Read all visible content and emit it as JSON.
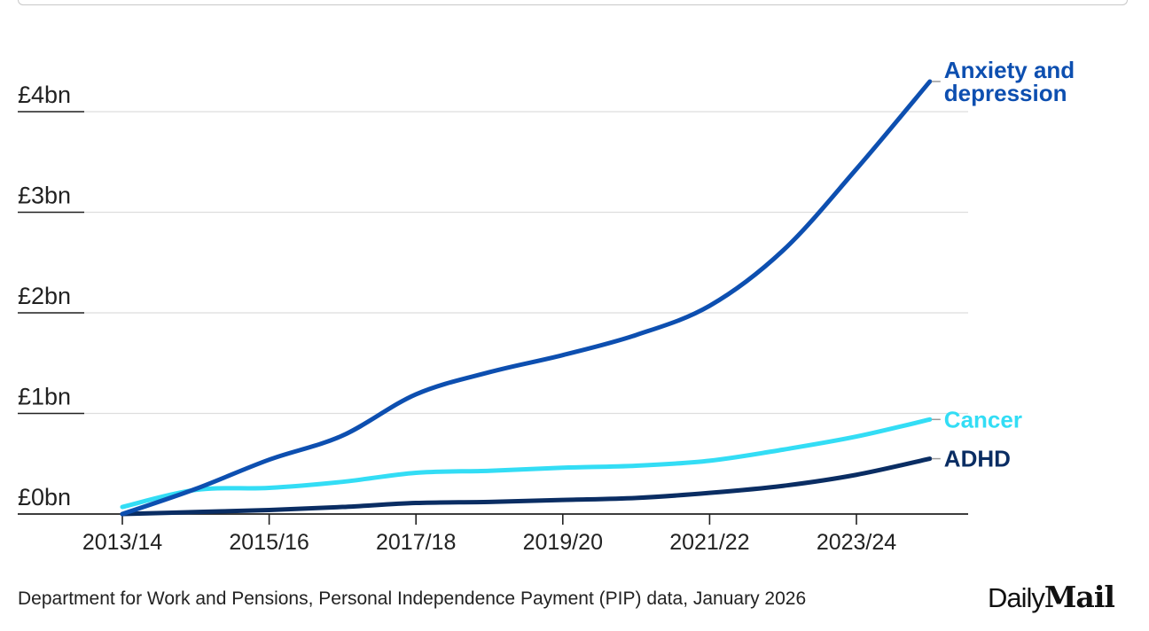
{
  "chart_data": {
    "type": "line",
    "title": "",
    "xlabel": "",
    "ylabel": "",
    "x": [
      "2013/14",
      "2014/15",
      "2015/16",
      "2016/17",
      "2017/18",
      "2018/19",
      "2019/20",
      "2020/21",
      "2021/22",
      "2022/23",
      "2023/24",
      "2024/25"
    ],
    "x_tick_labels": [
      "2013/14",
      "2015/16",
      "2017/18",
      "2019/20",
      "2021/22",
      "2023/24"
    ],
    "y_tick_values": [
      0,
      1,
      2,
      3,
      4
    ],
    "y_tick_labels": [
      "£0bn",
      "£1bn",
      "£2bn",
      "£3bn",
      "£4bn"
    ],
    "ylim": [
      0,
      4.3
    ],
    "grid": true,
    "series": [
      {
        "name": "Anxiety and depression",
        "label_lines": [
          "Anxiety and",
          "depression"
        ],
        "color": "#0d4fb0",
        "values": [
          0.0,
          0.25,
          0.54,
          0.78,
          1.19,
          1.41,
          1.58,
          1.78,
          2.07,
          2.62,
          3.43,
          4.3
        ]
      },
      {
        "name": "Cancer",
        "label_lines": [
          "Cancer"
        ],
        "color": "#33ddf5",
        "values": [
          0.07,
          0.24,
          0.26,
          0.32,
          0.41,
          0.43,
          0.46,
          0.48,
          0.53,
          0.64,
          0.77,
          0.94
        ]
      },
      {
        "name": "ADHD",
        "label_lines": [
          "ADHD"
        ],
        "color": "#0a2d63",
        "values": [
          0.0,
          0.02,
          0.04,
          0.07,
          0.11,
          0.12,
          0.14,
          0.16,
          0.21,
          0.28,
          0.39,
          0.55
        ]
      }
    ]
  },
  "source": "Department for Work and Pensions, Personal Independence Payment (PIP) data, January 2026",
  "logo": {
    "part1": "Daily",
    "part2": "Mail"
  }
}
